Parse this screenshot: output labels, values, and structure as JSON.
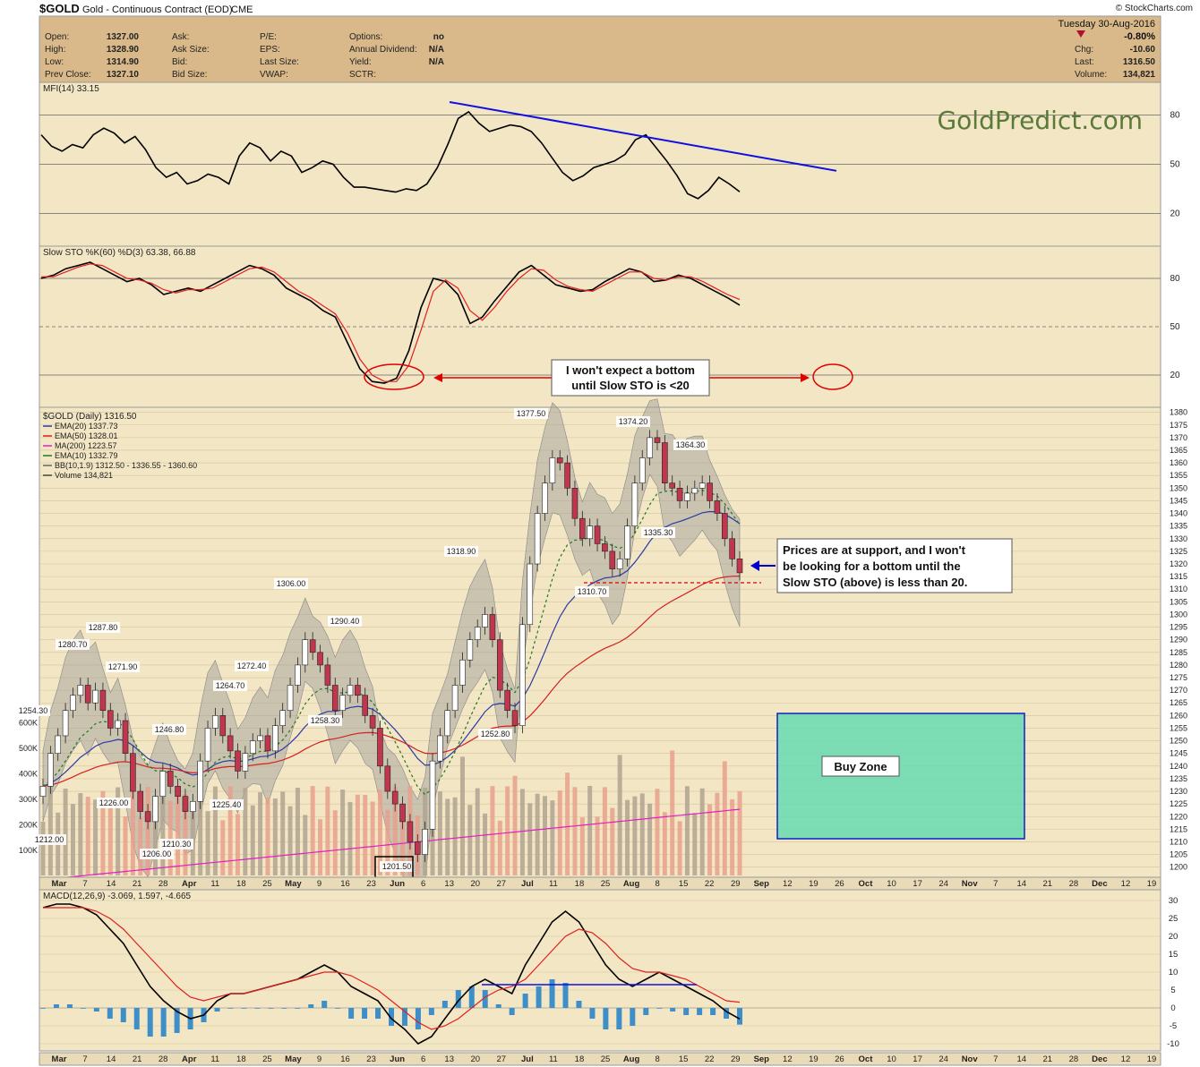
{
  "header": {
    "symbol": "$GOLD",
    "name": "Gold - Continuous Contract (EOD)",
    "exchange": "CME",
    "date": "Tuesday  30-Aug-2016",
    "change_pct": "-0.80%",
    "credit": "© StockCharts.com",
    "left_fields": [
      {
        "label": "Open:",
        "value": "1327.00"
      },
      {
        "label": "High:",
        "value": "1328.90"
      },
      {
        "label": "Low:",
        "value": "1314.90"
      },
      {
        "label": "Prev Close:",
        "value": "1327.10"
      }
    ],
    "mid_fields": [
      {
        "label": "Ask:",
        "value": ""
      },
      {
        "label": "Ask Size:",
        "value": ""
      },
      {
        "label": "Bid:",
        "value": ""
      },
      {
        "label": "Bid Size:",
        "value": ""
      }
    ],
    "mid2_fields": [
      {
        "label": "P/E:",
        "value": ""
      },
      {
        "label": "EPS:",
        "value": ""
      },
      {
        "label": "Last Size:",
        "value": ""
      },
      {
        "label": "VWAP:",
        "value": ""
      }
    ],
    "mid3_fields": [
      {
        "label": "Options:",
        "value": "no"
      },
      {
        "label": "Annual Dividend:",
        "value": "N/A"
      },
      {
        "label": "Yield:",
        "value": "N/A"
      },
      {
        "label": "SCTR:",
        "value": ""
      }
    ],
    "right_fields": [
      {
        "label": "Chg:",
        "value": "-10.60"
      },
      {
        "label": "Last:",
        "value": "1316.50"
      },
      {
        "label": "Volume:",
        "value": "134,821"
      }
    ]
  },
  "colors": {
    "panel_bg": "#f3e6c4",
    "header_bg": "#d9b98a",
    "up_candle": "#ffffff",
    "down_candle": "#c0364f",
    "ema20": "#2b3aa8",
    "ema50": "#d42020",
    "ma200": "#e020c0",
    "ema10": "#1f7a1f",
    "bband": "#9a9a9a",
    "volume_up": "#b0a392",
    "volume_down": "#e8a08c",
    "macd_hist": "#3e8ec8",
    "buy_zone": "#66d9b0",
    "annotation_red": "#e00000",
    "annotation_blue": "#0000cc",
    "watermark": "#5a7a3a"
  },
  "watermark": "GoldPredict.com",
  "annotations": {
    "sto_note_line1": "I won't expect a bottom",
    "sto_note_line2": "until Slow STO is <20",
    "price_note_line1": "Prices are at support, and I won't",
    "price_note_line2": "be looking for a bottom until the",
    "price_note_line3": "Slow STO (above) is less than 20.",
    "buy_zone": "Buy Zone"
  },
  "chart_data": [
    {
      "type": "line",
      "title": "MFI(14) 33.15",
      "ylim": [
        0,
        100
      ],
      "ticks": [
        20,
        50,
        80
      ],
      "series": [
        {
          "name": "MFI(14)",
          "values": [
            68,
            61,
            58,
            62,
            60,
            68,
            72,
            69,
            63,
            67,
            59,
            48,
            42,
            45,
            38,
            40,
            44,
            42,
            38,
            55,
            63,
            60,
            52,
            58,
            55,
            45,
            48,
            52,
            50,
            42,
            36,
            36,
            35,
            34,
            33,
            35,
            34,
            38,
            48,
            62,
            78,
            82,
            75,
            70,
            72,
            74,
            73,
            70,
            63,
            54,
            45,
            40,
            43,
            48,
            50,
            52,
            56,
            65,
            68,
            60,
            52,
            43,
            32,
            29,
            34,
            42,
            38,
            33.15
          ]
        }
      ],
      "trendline": {
        "start_value": 82,
        "end_value": 50
      }
    },
    {
      "type": "line",
      "title": "Slow STO %K(60) %D(3) 63.38, 66.88",
      "ylim": [
        0,
        100
      ],
      "ticks": [
        20,
        50,
        80
      ],
      "series": [
        {
          "name": "%K(60)",
          "values": [
            80,
            82,
            86,
            88,
            90,
            86,
            82,
            78,
            80,
            76,
            70,
            72,
            74,
            72,
            76,
            80,
            84,
            88,
            86,
            82,
            74,
            70,
            66,
            60,
            56,
            40,
            24,
            16,
            15,
            18,
            35,
            62,
            80,
            78,
            70,
            52,
            56,
            66,
            75,
            84,
            88,
            82,
            76,
            74,
            72,
            73,
            78,
            82,
            86,
            84,
            78,
            79,
            82,
            80,
            76,
            72,
            68,
            63.38
          ]
        },
        {
          "name": "%D(3)",
          "values": [
            81,
            81,
            84,
            87,
            89,
            88,
            84,
            80,
            79,
            77,
            73,
            71,
            73,
            73,
            74,
            78,
            82,
            86,
            87,
            84,
            78,
            72,
            68,
            63,
            58,
            46,
            30,
            20,
            16,
            16,
            26,
            48,
            72,
            79,
            74,
            60,
            54,
            62,
            72,
            80,
            86,
            85,
            79,
            75,
            73,
            72,
            76,
            80,
            84,
            84,
            80,
            79,
            81,
            81,
            78,
            74,
            70,
            66.88
          ]
        }
      ]
    },
    {
      "type": "candlestick",
      "title": "$GOLD (Daily) 1316.50",
      "ylim": [
        1196,
        1382
      ],
      "ticks": [
        1200,
        1205,
        1210,
        1215,
        1220,
        1225,
        1230,
        1235,
        1240,
        1245,
        1250,
        1255,
        1260,
        1265,
        1270,
        1275,
        1280,
        1285,
        1290,
        1295,
        1300,
        1305,
        1310,
        1315,
        1320,
        1325,
        1330,
        1335,
        1340,
        1345,
        1350,
        1355,
        1360,
        1365,
        1370,
        1375,
        1380
      ],
      "legend": [
        "EMA(20) 1337.73",
        "EMA(50) 1328.01",
        "MA(200) 1223.57",
        "EMA(10) 1332.79",
        "BB(10,1.9) 1312.50 - 1336.55 - 1360.60",
        "Volume 134,821"
      ],
      "price_labels": [
        "1254.30",
        "1212.00",
        "1280.70",
        "1287.80",
        "1271.90",
        "1246.80",
        "1226.00",
        "1206.00",
        "1210.30",
        "1264.70",
        "1225.40",
        "1272.40",
        "1306.00",
        "1290.40",
        "1258.30",
        "1201.50",
        "1318.90",
        "1252.80",
        "1377.50",
        "1310.70",
        "1374.20",
        "1335.30",
        "1364.30"
      ],
      "volume_ticks": [
        "100K",
        "200K",
        "300K",
        "400K",
        "500K",
        "600K"
      ],
      "closes": [
        1232,
        1245,
        1252,
        1262,
        1268,
        1272,
        1265,
        1270,
        1262,
        1255,
        1258,
        1245,
        1230,
        1222,
        1218,
        1228,
        1238,
        1232,
        1228,
        1222,
        1226,
        1242,
        1255,
        1260,
        1252,
        1246,
        1238,
        1245,
        1250,
        1252,
        1246,
        1256,
        1262,
        1272,
        1280,
        1290,
        1285,
        1280,
        1272,
        1262,
        1268,
        1272,
        1268,
        1260,
        1255,
        1240,
        1230,
        1225,
        1218,
        1210,
        1205,
        1215,
        1242,
        1252,
        1262,
        1272,
        1282,
        1290,
        1295,
        1300,
        1290,
        1270,
        1262,
        1256,
        1296,
        1320,
        1340,
        1352,
        1362,
        1360,
        1350,
        1338,
        1330,
        1335,
        1328,
        1325,
        1318,
        1322,
        1335,
        1352,
        1362,
        1370,
        1368,
        1352,
        1350,
        1345,
        1348,
        1350,
        1352,
        1345,
        1340,
        1330,
        1322,
        1316.5
      ],
      "x_ticks": [
        "Mar",
        "7",
        "14",
        "21",
        "28",
        "Apr",
        "11",
        "18",
        "25",
        "May",
        "9",
        "16",
        "23",
        "Jun",
        "6",
        "13",
        "20",
        "27",
        "Jul",
        "11",
        "18",
        "25",
        "Aug",
        "8",
        "15",
        "22",
        "29",
        "Sep",
        "12",
        "19",
        "26",
        "Oct",
        "10",
        "17",
        "24",
        "Nov",
        "7",
        "14",
        "21",
        "28",
        "Dec",
        "12",
        "19"
      ]
    },
    {
      "type": "line",
      "title": "MACD(12,26,9) -3.069, 1.597, -4.665",
      "ylim": [
        -12,
        33
      ],
      "ticks": [
        -10,
        -5,
        0,
        5,
        10,
        15,
        20,
        25,
        30
      ],
      "series": [
        {
          "name": "MACD(12,26,9)",
          "values": [
            28,
            29,
            29,
            28,
            26,
            22,
            18,
            12,
            6,
            2,
            -1,
            -3,
            -2,
            2,
            4,
            4,
            5,
            6,
            7,
            8,
            10,
            12,
            10,
            6,
            4,
            2,
            -3,
            -6,
            -10,
            -8,
            -3,
            2,
            6,
            8,
            6,
            4,
            12,
            18,
            24,
            27,
            24,
            18,
            12,
            8,
            6,
            8,
            10,
            8,
            6,
            4,
            2,
            -1,
            -3.069
          ]
        },
        {
          "name": "Signal",
          "values": [
            28,
            28,
            28,
            28,
            27,
            25,
            22,
            18,
            14,
            10,
            6,
            3,
            2,
            3,
            4,
            4,
            5,
            6,
            7,
            8,
            9,
            10,
            10,
            9,
            7,
            5,
            2,
            -1,
            -4,
            -6,
            -5,
            -3,
            0,
            3,
            5,
            6,
            8,
            12,
            16,
            20,
            22,
            21,
            18,
            14,
            11,
            10,
            10,
            9,
            8,
            6,
            4,
            2,
            1.597
          ]
        }
      ],
      "histogram_last": -4.665
    }
  ]
}
